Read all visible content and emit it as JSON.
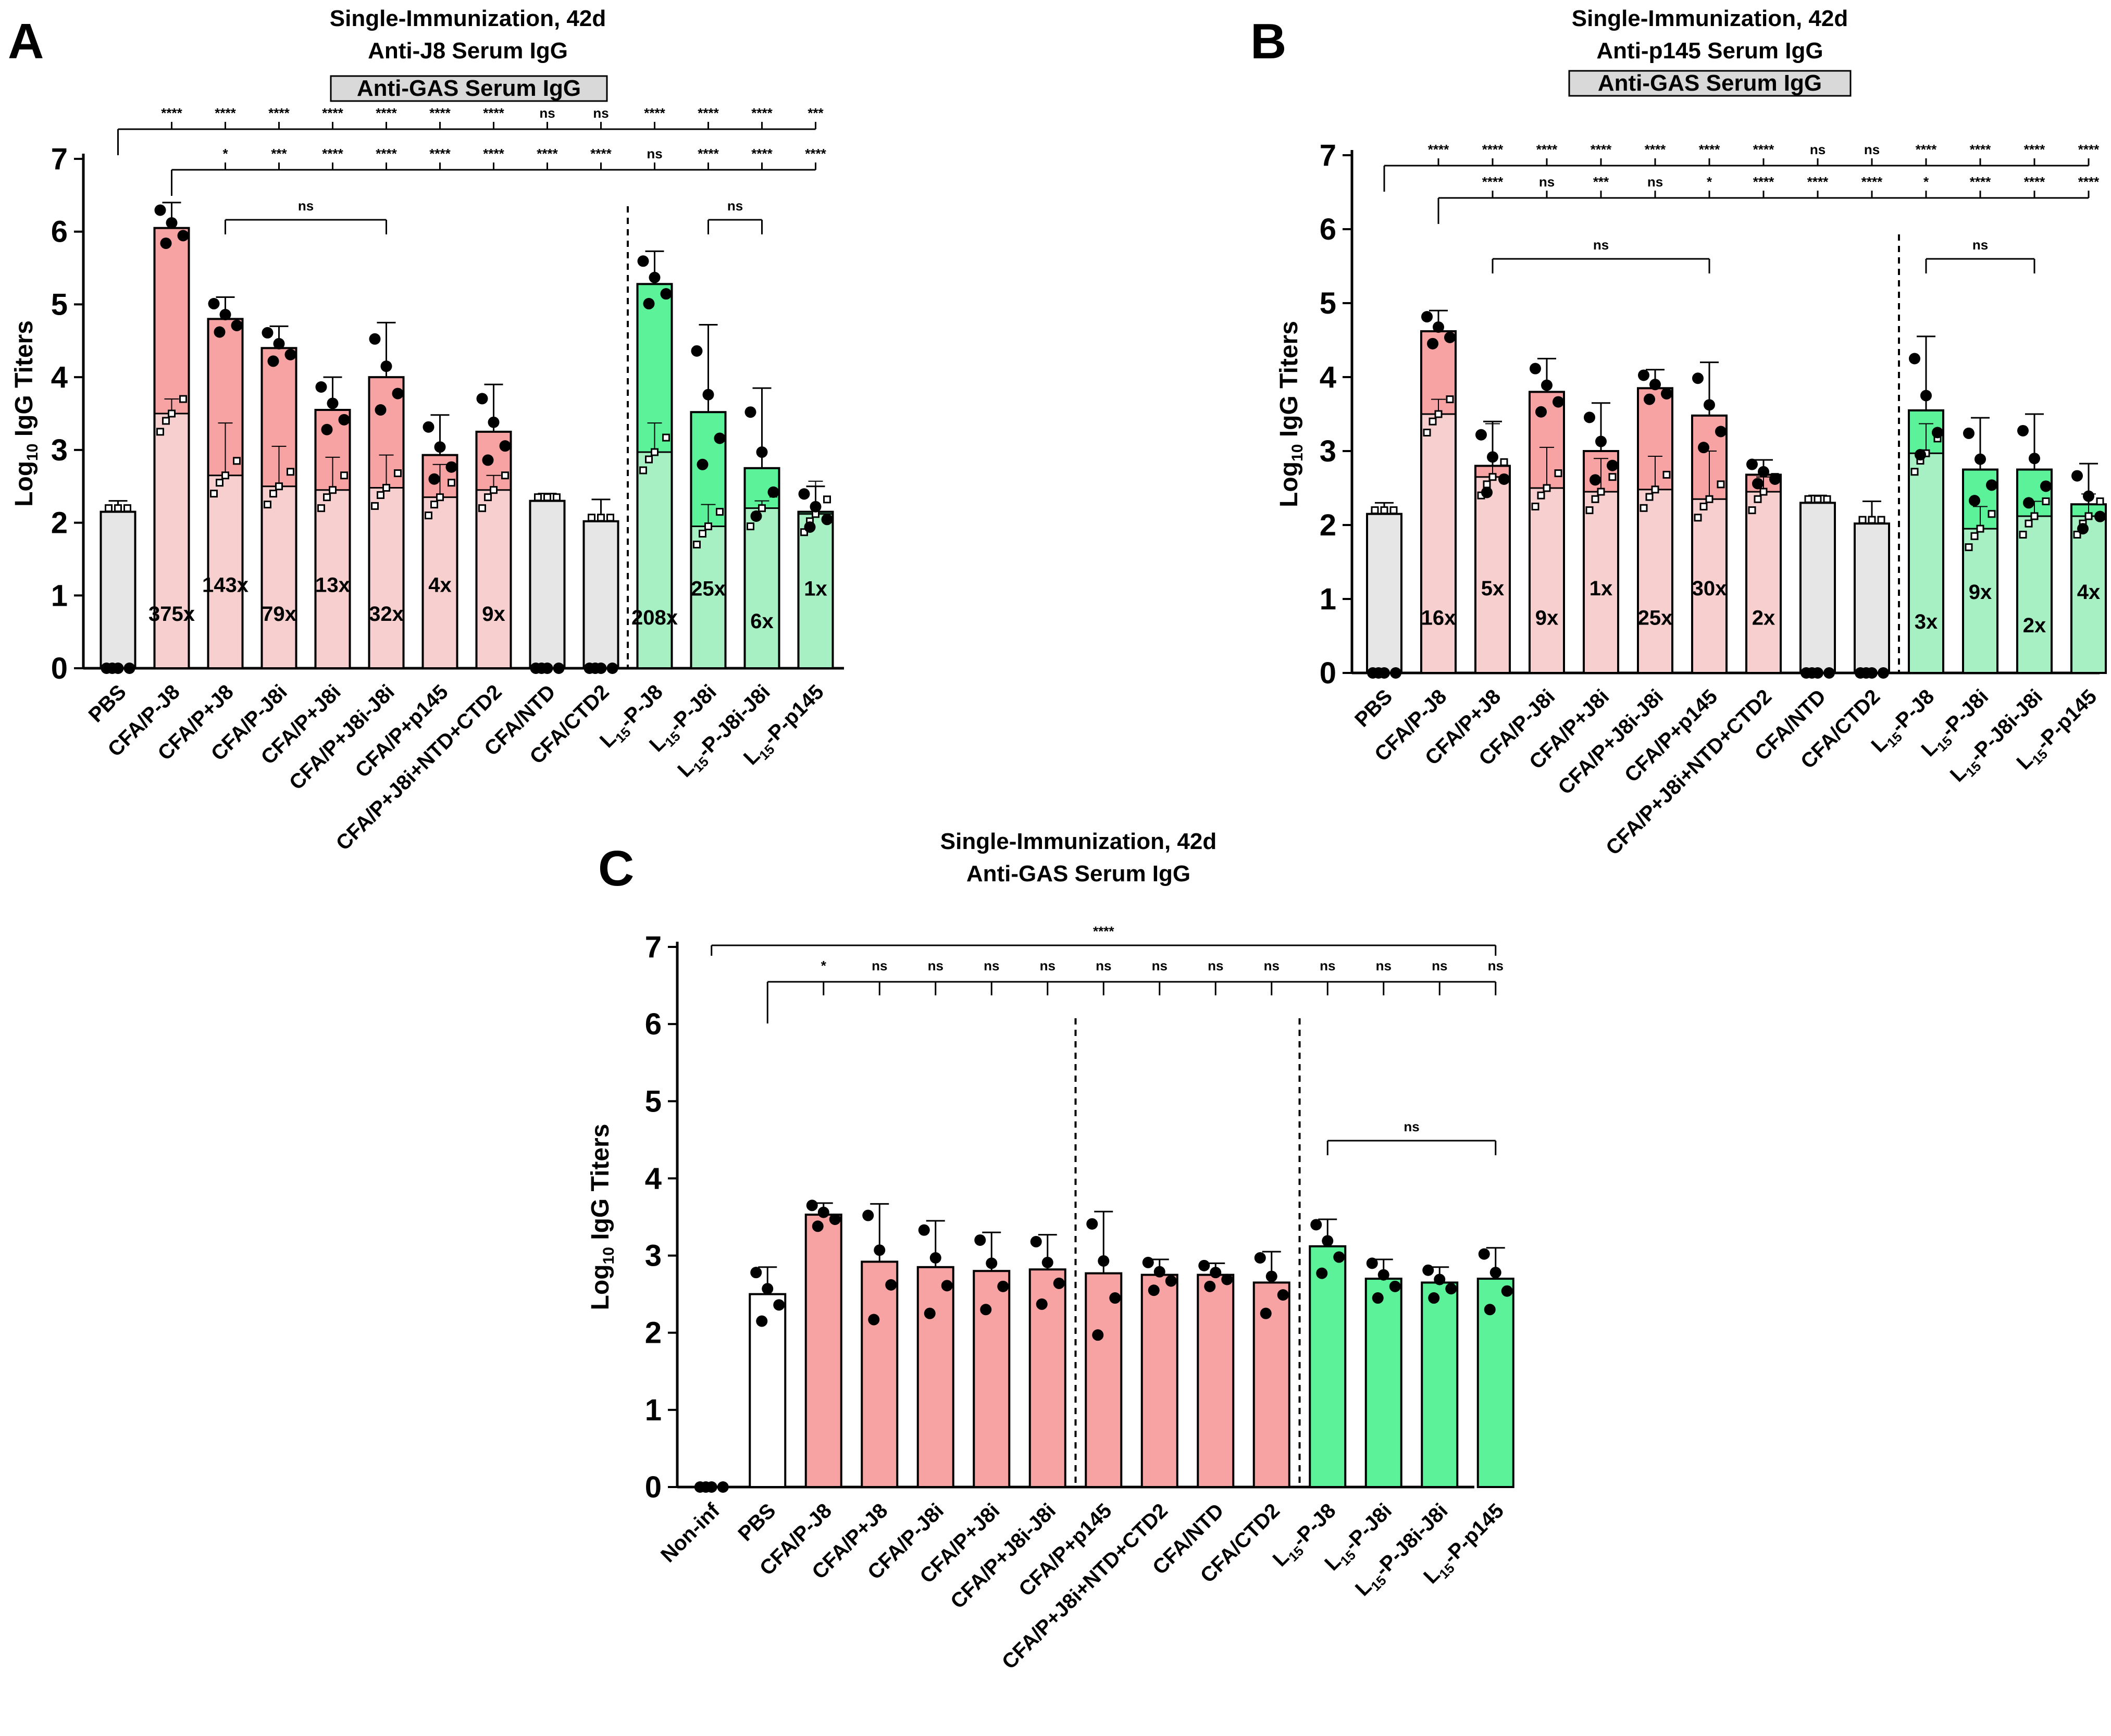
{
  "colors": {
    "gray": "#e6e6e6",
    "red": "#f7a3a3",
    "red_light": "#f8cfcf",
    "green": "#5cf29a",
    "green_light": "#a6f0c3",
    "white": "#ffffff",
    "green_c": "#5df59f",
    "red_c": "#f7a6a6"
  },
  "chart_data": [
    {
      "panel": "A",
      "type": "bar",
      "title_lines": [
        "Single-Immunization, 42d",
        "Anti-J8 Serum IgG"
      ],
      "boxed_label": "Anti-GAS Serum IgG",
      "ylabel": "Log10 IgG Titers",
      "ylim": [
        0,
        7
      ],
      "yticks": [
        "0",
        "1",
        "2",
        "3",
        "4",
        "5",
        "6",
        "7"
      ],
      "categories": [
        "PBS",
        "CFA/P-J8",
        "CFA/P+J8",
        "CFA/P-J8i",
        "CFA/P+J8i",
        "CFA/P+J8i-J8i",
        "CFA/P+p145",
        "CFA/P+J8i+NTD+CTD2",
        "CFA/NTD",
        "CFA/CTD2",
        "L15-P-J8",
        "L15-P-J8i",
        "L15-P-J8i-J8i",
        "L15-P-p145"
      ],
      "color_groups": [
        "gray",
        "red",
        "red",
        "red",
        "red",
        "red",
        "red",
        "red",
        "gray",
        "gray",
        "green",
        "green",
        "green",
        "green"
      ],
      "values": [
        2.15,
        6.05,
        4.8,
        4.4,
        3.55,
        4.0,
        2.93,
        3.25,
        2.3,
        2.02,
        5.28,
        3.52,
        2.75,
        2.15
      ],
      "errors": [
        0.15,
        0.35,
        0.3,
        0.3,
        0.45,
        0.75,
        0.55,
        0.65,
        0.1,
        0.3,
        0.45,
        1.2,
        1.1,
        0.35
      ],
      "gas_values": [
        null,
        3.5,
        2.65,
        2.5,
        2.45,
        2.48,
        2.35,
        2.45,
        null,
        null,
        2.97,
        1.95,
        2.2,
        2.12
      ],
      "gas_errors": [
        null,
        0.2,
        0.72,
        0.55,
        0.45,
        0.45,
        0.45,
        0.2,
        null,
        null,
        0.4,
        0.3,
        0.1,
        0.45
      ],
      "fold_labels": [
        "",
        "375x",
        "143x",
        "79x",
        "13x",
        "32x",
        "4x",
        "9x",
        "",
        "",
        "208x",
        "25x",
        "6x",
        "1x"
      ],
      "fold_levels": [
        0,
        0.65,
        1.05,
        0.65,
        1.05,
        0.65,
        1.05,
        0.65,
        0,
        0,
        0.6,
        1.0,
        0.55,
        1.0
      ],
      "sig_row1": [
        "****",
        "****",
        "****",
        "****",
        "****",
        "****",
        "****",
        "ns",
        "ns",
        "****",
        "****",
        "****",
        "***"
      ],
      "sig_row2": [
        "*",
        "***",
        "****",
        "****",
        "****",
        "****",
        "****",
        "****",
        "ns",
        "****",
        "****",
        "****"
      ],
      "ns_brackets": [
        {
          "from": 2,
          "to": 5,
          "label": "ns"
        },
        {
          "from": 11,
          "to": 12,
          "label": "ns"
        }
      ],
      "divider_after_index": 9
    },
    {
      "panel": "B",
      "type": "bar",
      "title_lines": [
        "Single-Immunization, 42d",
        "Anti-p145 Serum IgG"
      ],
      "boxed_label": "Anti-GAS Serum IgG",
      "ylabel": "Log10 IgG Titers",
      "ylim": [
        0,
        7
      ],
      "yticks": [
        "0",
        "1",
        "2",
        "3",
        "4",
        "5",
        "6",
        "7"
      ],
      "categories": [
        "PBS",
        "CFA/P-J8",
        "CFA/P+J8",
        "CFA/P-J8i",
        "CFA/P+J8i",
        "CFA/P+J8i-J8i",
        "CFA/P+p145",
        "CFA/P+J8i+NTD+CTD2",
        "CFA/NTD",
        "CFA/CTD2",
        "L15-P-J8",
        "L15-P-J8i",
        "L15-P-J8i-J8i",
        "L15-P-p145"
      ],
      "color_groups": [
        "gray",
        "red",
        "red",
        "red",
        "red",
        "red",
        "red",
        "red",
        "gray",
        "gray",
        "green",
        "green",
        "green",
        "green"
      ],
      "values": [
        2.15,
        4.62,
        2.8,
        3.8,
        3.0,
        3.85,
        3.48,
        2.68,
        2.3,
        2.02,
        3.55,
        2.75,
        2.75,
        2.28
      ],
      "errors": [
        0.15,
        0.28,
        0.6,
        0.45,
        0.65,
        0.25,
        0.72,
        0.2,
        0.1,
        0.3,
        1.0,
        0.7,
        0.75,
        0.55
      ],
      "gas_values": [
        null,
        3.5,
        2.65,
        2.5,
        2.45,
        2.48,
        2.35,
        2.45,
        null,
        null,
        2.97,
        1.95,
        2.12,
        2.12
      ],
      "gas_errors": [
        null,
        0.2,
        0.72,
        0.55,
        0.45,
        0.45,
        0.65,
        0.2,
        null,
        null,
        0.4,
        0.3,
        0.2,
        0.3
      ],
      "fold_labels": [
        "",
        "16x",
        "5x",
        "9x",
        "1x",
        "25x",
        "30x",
        "2x",
        "",
        "",
        "3x",
        "9x",
        "2x",
        "4x"
      ],
      "fold_levels": [
        0,
        0.65,
        1.05,
        0.65,
        1.05,
        0.65,
        1.05,
        0.65,
        0,
        0,
        0.6,
        1.0,
        0.55,
        1.0
      ],
      "sig_row1": [
        "****",
        "****",
        "****",
        "****",
        "****",
        "****",
        "****",
        "ns",
        "ns",
        "****",
        "****",
        "****",
        "****"
      ],
      "sig_row2": [
        "****",
        "ns",
        "***",
        "ns",
        "*",
        "****",
        "****",
        "****",
        "*",
        "****",
        "****",
        "****"
      ],
      "ns_brackets": [
        {
          "from": 2,
          "to": 6,
          "label": "ns"
        },
        {
          "from": 10,
          "to": 12,
          "label": "ns"
        }
      ],
      "divider_after_index": 9
    },
    {
      "panel": "C",
      "type": "bar",
      "title_lines": [
        "Single-Immunization, 42d",
        "Anti-GAS Serum IgG"
      ],
      "ylabel": "Log10 IgG Titers",
      "ylim": [
        0,
        7
      ],
      "yticks": [
        "0",
        "1",
        "2",
        "3",
        "4",
        "5",
        "6",
        "7"
      ],
      "categories": [
        "Non-inf",
        "PBS",
        "CFA/P-J8",
        "CFA/P+J8",
        "CFA/P-J8i",
        "CFA/P+J8i",
        "CFA/P+J8i-J8i",
        "CFA/P+p145",
        "CFA/P+J8i+NTD+CTD2",
        "CFA/NTD",
        "CFA/CTD2",
        "L15-P-J8",
        "L15-P-J8i",
        "L15-P-J8i-J8i",
        "L15-P-p145"
      ],
      "color_groups": [
        "none",
        "white",
        "red",
        "red",
        "red",
        "red",
        "red",
        "red",
        "red",
        "red",
        "red",
        "green",
        "green",
        "green",
        "green"
      ],
      "values": [
        0,
        2.5,
        3.53,
        2.92,
        2.85,
        2.8,
        2.82,
        2.77,
        2.75,
        2.75,
        2.65,
        3.12,
        2.7,
        2.65,
        2.7
      ],
      "errors": [
        0,
        0.35,
        0.15,
        0.75,
        0.6,
        0.5,
        0.45,
        0.8,
        0.2,
        0.15,
        0.4,
        0.35,
        0.25,
        0.2,
        0.4
      ],
      "sig_top": "****",
      "sig_row": [
        "*",
        "ns",
        "ns",
        "ns",
        "ns",
        "ns",
        "ns",
        "ns",
        "ns",
        "ns",
        "ns",
        "ns",
        "ns"
      ],
      "ns_brackets": [
        {
          "from": 11,
          "to": 14,
          "label": "ns"
        }
      ],
      "dividers_after_index": [
        6,
        10
      ]
    }
  ]
}
